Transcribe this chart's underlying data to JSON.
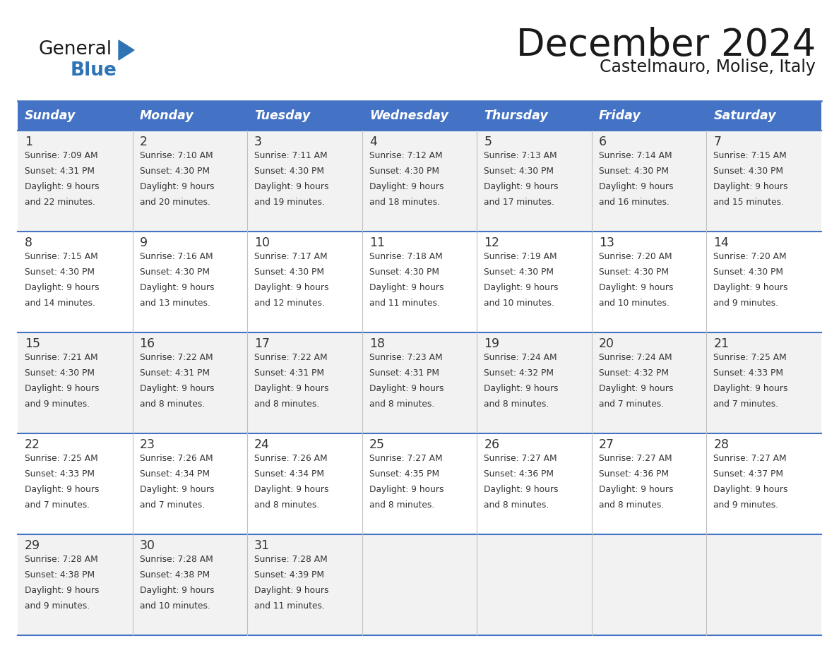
{
  "title": "December 2024",
  "subtitle": "Castelmauro, Molise, Italy",
  "header_color": "#4472C4",
  "header_text_color": "#FFFFFF",
  "days_of_week": [
    "Sunday",
    "Monday",
    "Tuesday",
    "Wednesday",
    "Thursday",
    "Friday",
    "Saturday"
  ],
  "row_bg_even": "#F2F2F2",
  "row_bg_odd": "#FFFFFF",
  "border_color": "#4472C4",
  "cell_border_color": "#AAAAAA",
  "text_color": "#333333",
  "calendar_data": [
    [
      {
        "day": 1,
        "sunrise": "7:09 AM",
        "sunset": "4:31 PM",
        "daylight": "9 hours",
        "daylight2": "and 22 minutes."
      },
      {
        "day": 2,
        "sunrise": "7:10 AM",
        "sunset": "4:30 PM",
        "daylight": "9 hours",
        "daylight2": "and 20 minutes."
      },
      {
        "day": 3,
        "sunrise": "7:11 AM",
        "sunset": "4:30 PM",
        "daylight": "9 hours",
        "daylight2": "and 19 minutes."
      },
      {
        "day": 4,
        "sunrise": "7:12 AM",
        "sunset": "4:30 PM",
        "daylight": "9 hours",
        "daylight2": "and 18 minutes."
      },
      {
        "day": 5,
        "sunrise": "7:13 AM",
        "sunset": "4:30 PM",
        "daylight": "9 hours",
        "daylight2": "and 17 minutes."
      },
      {
        "day": 6,
        "sunrise": "7:14 AM",
        "sunset": "4:30 PM",
        "daylight": "9 hours",
        "daylight2": "and 16 minutes."
      },
      {
        "day": 7,
        "sunrise": "7:15 AM",
        "sunset": "4:30 PM",
        "daylight": "9 hours",
        "daylight2": "and 15 minutes."
      }
    ],
    [
      {
        "day": 8,
        "sunrise": "7:15 AM",
        "sunset": "4:30 PM",
        "daylight": "9 hours",
        "daylight2": "and 14 minutes."
      },
      {
        "day": 9,
        "sunrise": "7:16 AM",
        "sunset": "4:30 PM",
        "daylight": "9 hours",
        "daylight2": "and 13 minutes."
      },
      {
        "day": 10,
        "sunrise": "7:17 AM",
        "sunset": "4:30 PM",
        "daylight": "9 hours",
        "daylight2": "and 12 minutes."
      },
      {
        "day": 11,
        "sunrise": "7:18 AM",
        "sunset": "4:30 PM",
        "daylight": "9 hours",
        "daylight2": "and 11 minutes."
      },
      {
        "day": 12,
        "sunrise": "7:19 AM",
        "sunset": "4:30 PM",
        "daylight": "9 hours",
        "daylight2": "and 10 minutes."
      },
      {
        "day": 13,
        "sunrise": "7:20 AM",
        "sunset": "4:30 PM",
        "daylight": "9 hours",
        "daylight2": "and 10 minutes."
      },
      {
        "day": 14,
        "sunrise": "7:20 AM",
        "sunset": "4:30 PM",
        "daylight": "9 hours",
        "daylight2": "and 9 minutes."
      }
    ],
    [
      {
        "day": 15,
        "sunrise": "7:21 AM",
        "sunset": "4:30 PM",
        "daylight": "9 hours",
        "daylight2": "and 9 minutes."
      },
      {
        "day": 16,
        "sunrise": "7:22 AM",
        "sunset": "4:31 PM",
        "daylight": "9 hours",
        "daylight2": "and 8 minutes."
      },
      {
        "day": 17,
        "sunrise": "7:22 AM",
        "sunset": "4:31 PM",
        "daylight": "9 hours",
        "daylight2": "and 8 minutes."
      },
      {
        "day": 18,
        "sunrise": "7:23 AM",
        "sunset": "4:31 PM",
        "daylight": "9 hours",
        "daylight2": "and 8 minutes."
      },
      {
        "day": 19,
        "sunrise": "7:24 AM",
        "sunset": "4:32 PM",
        "daylight": "9 hours",
        "daylight2": "and 8 minutes."
      },
      {
        "day": 20,
        "sunrise": "7:24 AM",
        "sunset": "4:32 PM",
        "daylight": "9 hours",
        "daylight2": "and 7 minutes."
      },
      {
        "day": 21,
        "sunrise": "7:25 AM",
        "sunset": "4:33 PM",
        "daylight": "9 hours",
        "daylight2": "and 7 minutes."
      }
    ],
    [
      {
        "day": 22,
        "sunrise": "7:25 AM",
        "sunset": "4:33 PM",
        "daylight": "9 hours",
        "daylight2": "and 7 minutes."
      },
      {
        "day": 23,
        "sunrise": "7:26 AM",
        "sunset": "4:34 PM",
        "daylight": "9 hours",
        "daylight2": "and 7 minutes."
      },
      {
        "day": 24,
        "sunrise": "7:26 AM",
        "sunset": "4:34 PM",
        "daylight": "9 hours",
        "daylight2": "and 8 minutes."
      },
      {
        "day": 25,
        "sunrise": "7:27 AM",
        "sunset": "4:35 PM",
        "daylight": "9 hours",
        "daylight2": "and 8 minutes."
      },
      {
        "day": 26,
        "sunrise": "7:27 AM",
        "sunset": "4:36 PM",
        "daylight": "9 hours",
        "daylight2": "and 8 minutes."
      },
      {
        "day": 27,
        "sunrise": "7:27 AM",
        "sunset": "4:36 PM",
        "daylight": "9 hours",
        "daylight2": "and 8 minutes."
      },
      {
        "day": 28,
        "sunrise": "7:27 AM",
        "sunset": "4:37 PM",
        "daylight": "9 hours",
        "daylight2": "and 9 minutes."
      }
    ],
    [
      {
        "day": 29,
        "sunrise": "7:28 AM",
        "sunset": "4:38 PM",
        "daylight": "9 hours",
        "daylight2": "and 9 minutes."
      },
      {
        "day": 30,
        "sunrise": "7:28 AM",
        "sunset": "4:38 PM",
        "daylight": "9 hours",
        "daylight2": "and 10 minutes."
      },
      {
        "day": 31,
        "sunrise": "7:28 AM",
        "sunset": "4:39 PM",
        "daylight": "9 hours",
        "daylight2": "and 11 minutes."
      },
      null,
      null,
      null,
      null
    ]
  ]
}
